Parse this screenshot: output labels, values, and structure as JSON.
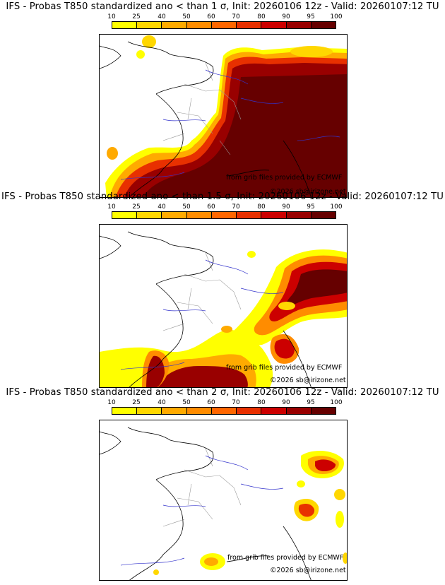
{
  "colorbar": {
    "ticks": [
      "10",
      "25",
      "40",
      "50",
      "60",
      "70",
      "80",
      "90",
      "95",
      "100"
    ],
    "colors": [
      "#ffff00",
      "#ffd700",
      "#ffaa00",
      "#ff8c00",
      "#ff6600",
      "#e83000",
      "#cc0000",
      "#990000",
      "#660000"
    ]
  },
  "panels": [
    {
      "title": "IFS - Probas T850  standardized ano < than 1 σ, Init: 20260106 12z - Valid: 20260107:12 TU",
      "credit_source": "from grib files provided by ECMWF",
      "credit_copy": "©2026 sb@irizone.net"
    },
    {
      "title": "IFS - Probas T850  standardized ano < than 1.5 σ, Init: 20260106 12z - Valid: 20260107:12 TU",
      "credit_source": "from grib files provided by ECMWF",
      "credit_copy": "©2026 sb@irizone.net"
    },
    {
      "title": "IFS - Probas T850  standardized ano < than 2 σ, Init: 20260106 12z - Valid: 20260107:12 TU",
      "credit_source": "from grib files provided by ECMWF",
      "credit_copy": "©2026 sb@irizone.net"
    }
  ]
}
